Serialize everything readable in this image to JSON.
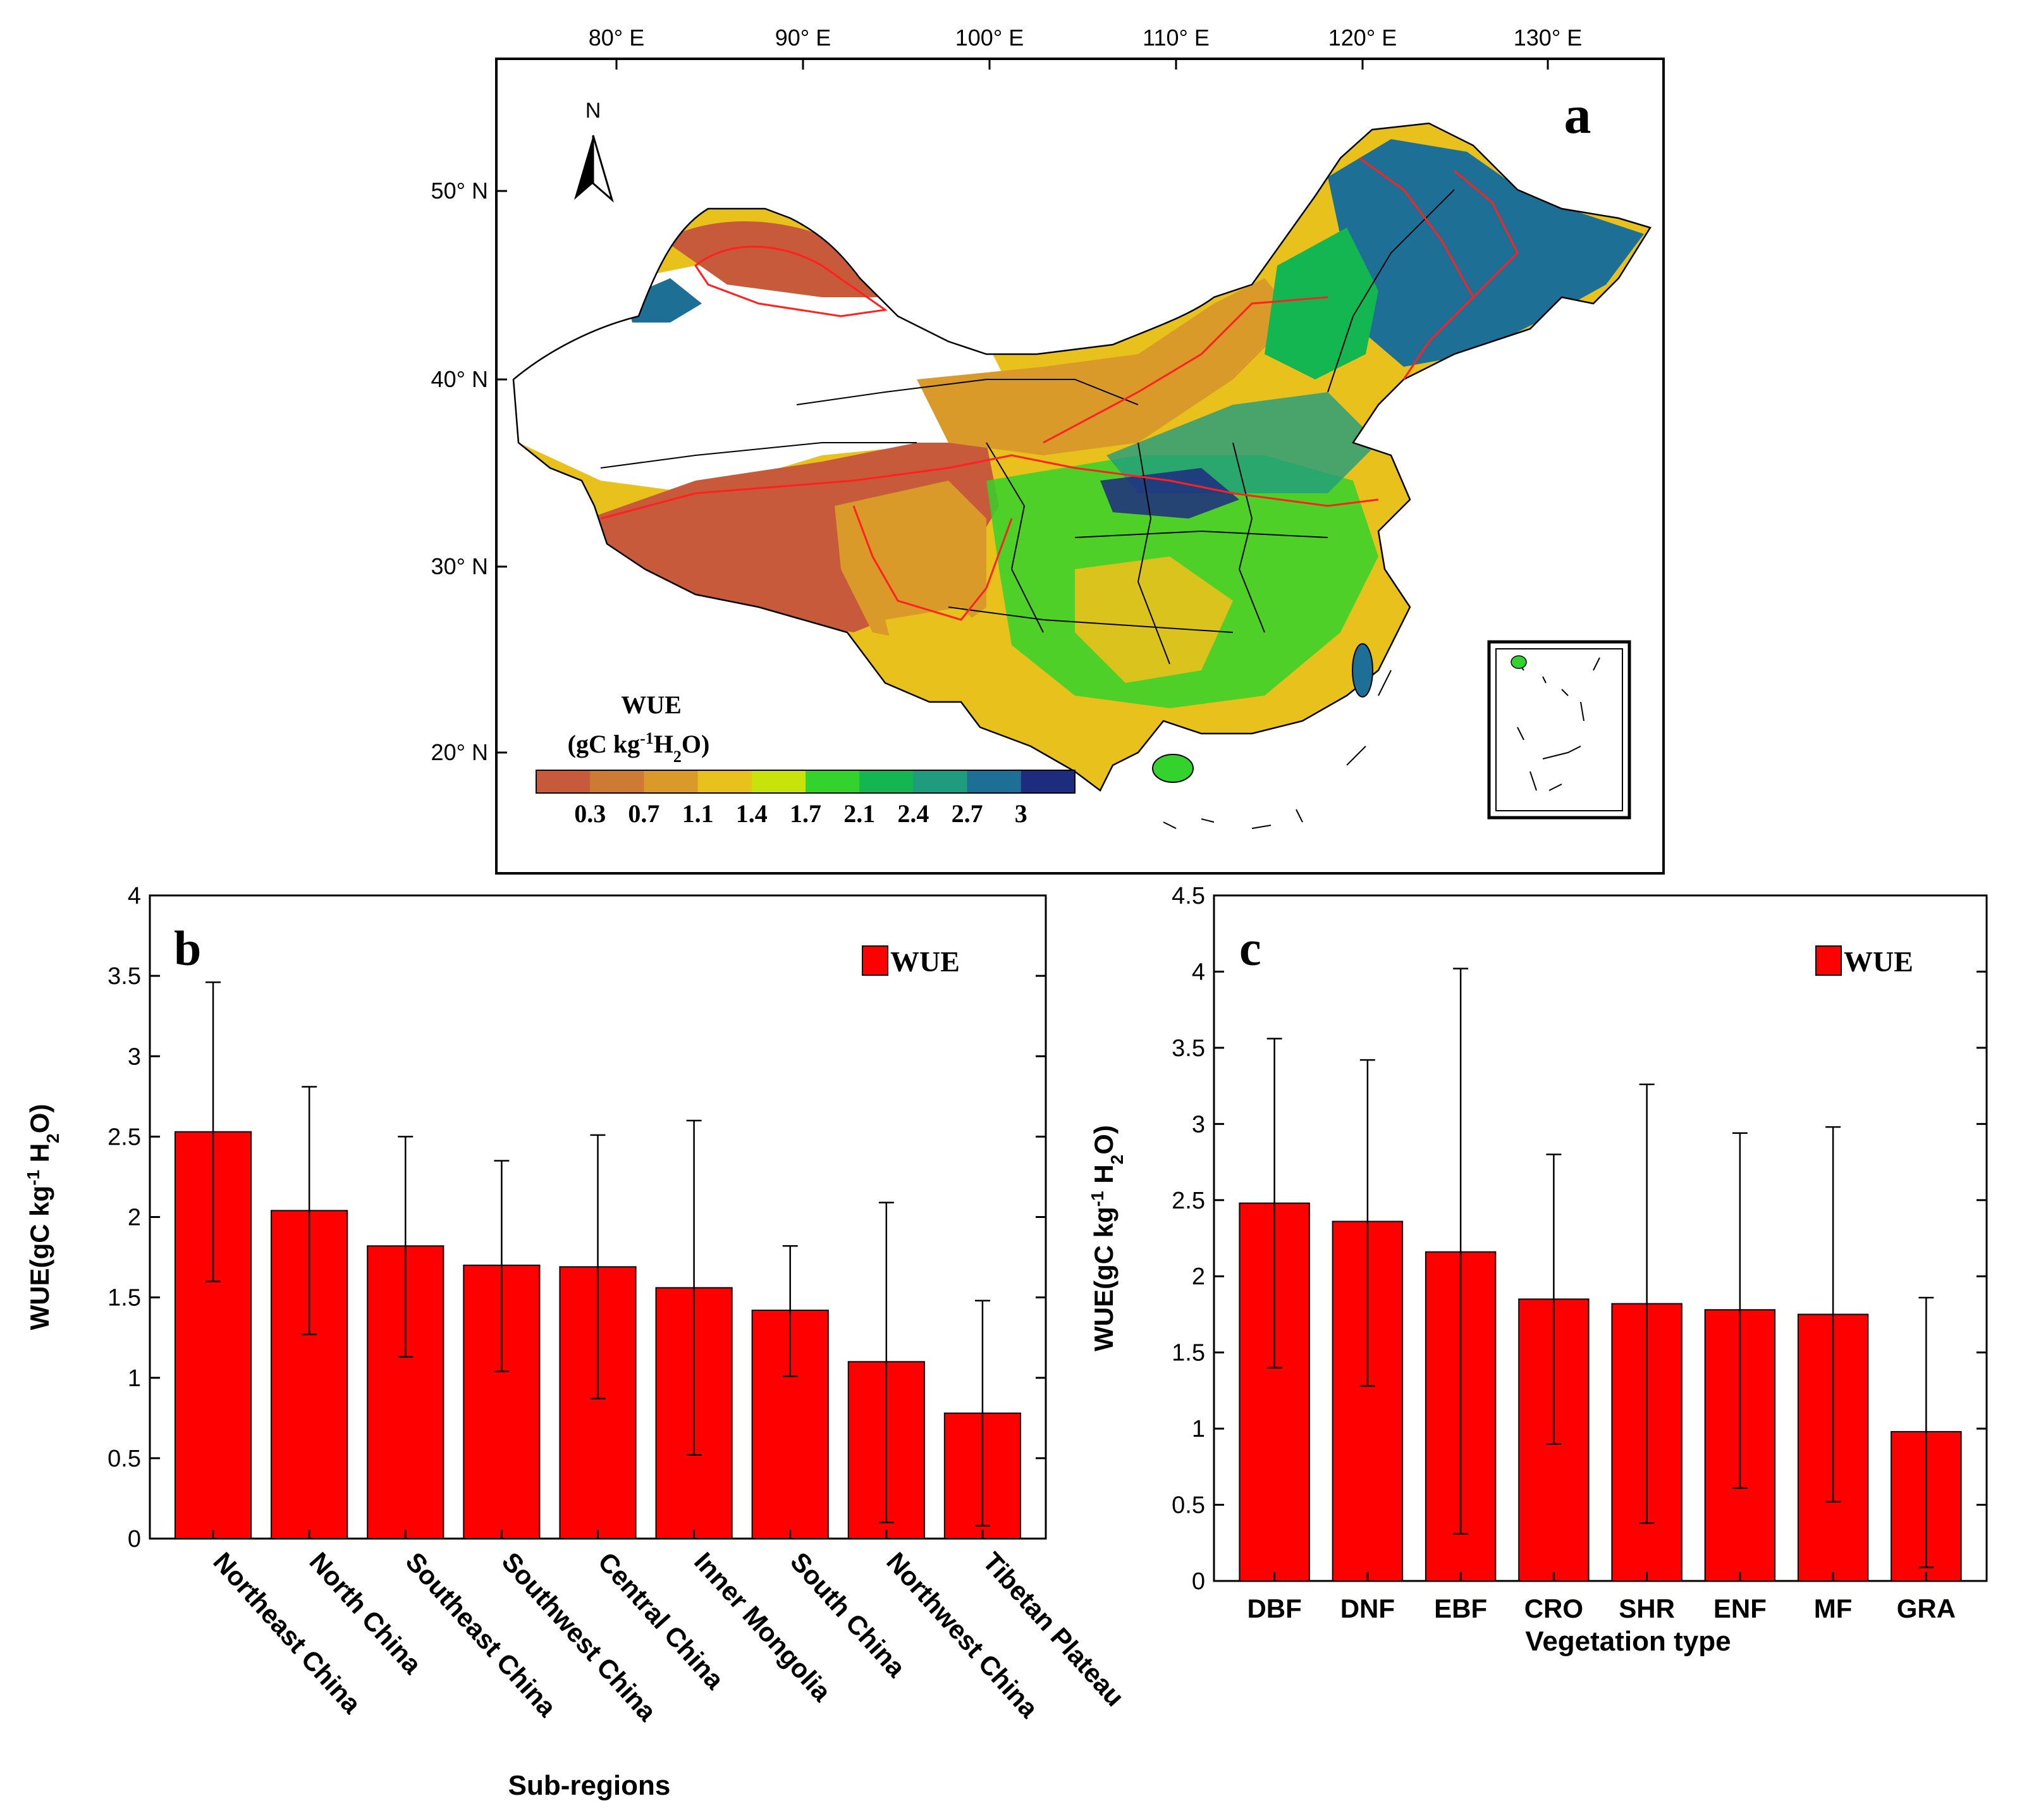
{
  "panel_a": {
    "label": "a",
    "north_label": "N",
    "lon_ticks": [
      "80° E",
      "90° E",
      "100° E",
      "110° E",
      "120° E",
      "130° E"
    ],
    "lat_ticks": [
      "50° N",
      "40° N",
      "30° N",
      "20° N"
    ],
    "colorbar": {
      "title_line1": "WUE",
      "title_line2_parts": [
        "(gC kg",
        "-1",
        "H",
        "2",
        "O)"
      ],
      "ticks": [
        "0.3",
        "0.7",
        "1.1",
        "1.4",
        "1.7",
        "2.1",
        "2.4",
        "2.7",
        "3"
      ],
      "colors": [
        "#c65a3a",
        "#cc7a34",
        "#d99a2a",
        "#e9c11c",
        "#c8e30c",
        "#34d22c",
        "#14b652",
        "#1f9c7e",
        "#1d6f95",
        "#1e2c80"
      ]
    },
    "map_palette": {
      "arid": "#c65a3a",
      "low": "#d99a2a",
      "mid": "#e9c11c",
      "green": "#34d22c",
      "teal": "#1f9c7e",
      "high": "#1d6f95",
      "boundary": "#ff2020"
    }
  },
  "colors": {
    "bar": "#ff0000",
    "axis": "#000000"
  },
  "chart_data": [
    {
      "type": "bar",
      "panel_label": "b",
      "title": "",
      "categories": [
        "Northeast China",
        "North China",
        "Southeast China",
        "Southwest China",
        "Central China",
        "Inner Mongolia",
        "South China",
        "Northwest China",
        "Tibetan Plateau"
      ],
      "series": [
        {
          "name": "WUE",
          "values": [
            2.53,
            2.04,
            1.82,
            1.7,
            1.69,
            1.56,
            1.42,
            1.1,
            0.78
          ],
          "error_upper": [
            3.46,
            2.81,
            2.5,
            2.35,
            2.51,
            2.6,
            1.82,
            2.09,
            1.48
          ],
          "error_lower": [
            1.6,
            1.27,
            1.13,
            1.04,
            0.87,
            0.52,
            1.01,
            0.1,
            0.08
          ]
        }
      ],
      "xlabel": "Sub-regions",
      "ylabel_parts": [
        "WUE(gC kg",
        "-1",
        " H",
        "2",
        "O)"
      ],
      "ylim": [
        0,
        4
      ],
      "yticks": [
        "0",
        "0.5",
        "1",
        "1.5",
        "2",
        "2.5",
        "3",
        "3.5",
        "4"
      ],
      "legend": "WUE",
      "legend_position": "top-right"
    },
    {
      "type": "bar",
      "panel_label": "c",
      "title": "",
      "categories": [
        "DBF",
        "DNF",
        "EBF",
        "CRO",
        "SHR",
        "ENF",
        "MF",
        "GRA"
      ],
      "series": [
        {
          "name": "WUE",
          "values": [
            2.48,
            2.36,
            2.16,
            1.85,
            1.82,
            1.78,
            1.75,
            0.98
          ],
          "error_upper": [
            3.56,
            3.42,
            4.02,
            2.8,
            3.26,
            2.94,
            2.98,
            1.86
          ],
          "error_lower": [
            1.4,
            1.28,
            0.31,
            0.9,
            0.38,
            0.61,
            0.52,
            0.09
          ]
        }
      ],
      "xlabel": "Vegetation type",
      "ylabel_parts": [
        "WUE(gC kg",
        "-1",
        " H",
        "2",
        "O)"
      ],
      "ylim": [
        0,
        4.5
      ],
      "yticks": [
        "0",
        "0.5",
        "1",
        "1.5",
        "2",
        "2.5",
        "3",
        "3.5",
        "4",
        "4.5"
      ],
      "legend": "WUE",
      "legend_position": "top-right"
    }
  ]
}
